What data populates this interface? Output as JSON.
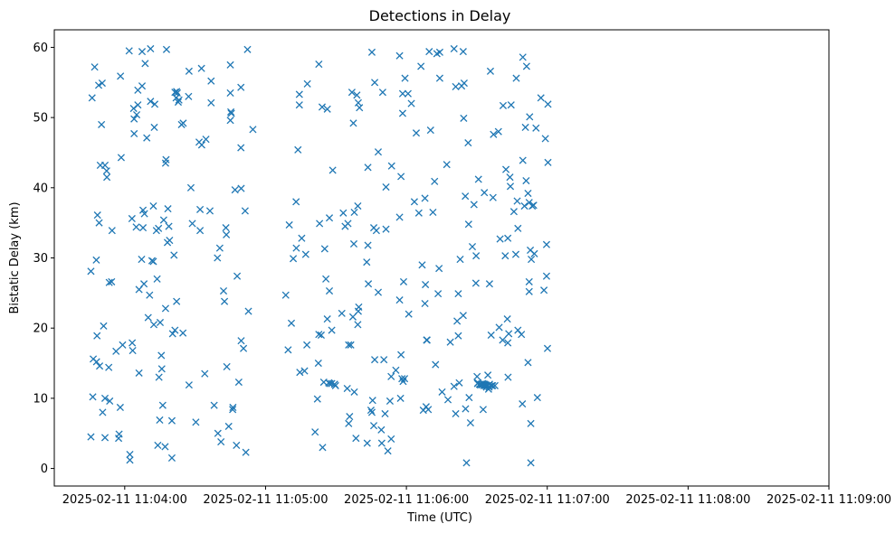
{
  "chart_data": {
    "type": "scatter",
    "title": "Detections in Delay",
    "xlabel": "Time (UTC)",
    "ylabel": "Bistatic Delay (km)",
    "marker": "x",
    "color": "#1f77b4",
    "x_unit": "seconds after 2025-02-11 11:03:30",
    "xlim": [
      0,
      330
    ],
    "ylim": [
      -2.5,
      62.5
    ],
    "x_ticks": [
      {
        "value": 30,
        "label": "2025-02-11 11:04:00"
      },
      {
        "value": 90,
        "label": "2025-02-11 11:05:00"
      },
      {
        "value": 150,
        "label": "2025-02-11 11:06:00"
      },
      {
        "value": 210,
        "label": "2025-02-11 11:07:00"
      },
      {
        "value": 270,
        "label": "2025-02-11 11:08:00"
      },
      {
        "value": 330,
        "label": "2025-02-11 11:09:00"
      }
    ],
    "y_ticks": [
      {
        "value": 0,
        "label": "0"
      },
      {
        "value": 10,
        "label": "10"
      },
      {
        "value": 20,
        "label": "20"
      },
      {
        "value": 30,
        "label": "30"
      },
      {
        "value": 40,
        "label": "40"
      },
      {
        "value": 50,
        "label": "50"
      },
      {
        "value": 60,
        "label": "60"
      }
    ],
    "points": [
      [
        15.6,
        4.5
      ],
      [
        16.1,
        52.8
      ],
      [
        15.6,
        28.1
      ],
      [
        16.4,
        10.2
      ],
      [
        16.6,
        15.6
      ],
      [
        17.2,
        57.2
      ],
      [
        17.9,
        29.7
      ],
      [
        18.0,
        15.2
      ],
      [
        18.4,
        36.1
      ],
      [
        18.2,
        18.9
      ],
      [
        18.9,
        54.6
      ],
      [
        19.1,
        35.0
      ],
      [
        19.3,
        14.6
      ],
      [
        19.6,
        43.2
      ],
      [
        20.1,
        49.0
      ],
      [
        20.4,
        54.9
      ],
      [
        20.6,
        8.0
      ],
      [
        21.0,
        20.3
      ],
      [
        21.6,
        10.0
      ],
      [
        21.6,
        4.4
      ],
      [
        21.6,
        43.2
      ],
      [
        22.3,
        42.4
      ],
      [
        22.4,
        41.5
      ],
      [
        23.4,
        26.5
      ],
      [
        23.2,
        14.4
      ],
      [
        23.6,
        9.6
      ],
      [
        24.4,
        26.6
      ],
      [
        24.6,
        33.9
      ],
      [
        26.3,
        16.7
      ],
      [
        27.4,
        4.3
      ],
      [
        27.6,
        4.9
      ],
      [
        28.1,
        8.7
      ],
      [
        28.2,
        55.9
      ],
      [
        28.5,
        44.3
      ],
      [
        29.1,
        17.6
      ],
      [
        31.9,
        59.5
      ],
      [
        32.2,
        1.2
      ],
      [
        32.2,
        2.0
      ],
      [
        33.1,
        35.6
      ],
      [
        33.2,
        17.9
      ],
      [
        33.4,
        16.8
      ],
      [
        33.8,
        51.3
      ],
      [
        34.0,
        49.8
      ],
      [
        34.0,
        47.7
      ],
      [
        34.9,
        34.4
      ],
      [
        35.1,
        50.4
      ],
      [
        35.6,
        51.8
      ],
      [
        35.6,
        53.9
      ],
      [
        36.1,
        13.6
      ],
      [
        36.1,
        25.5
      ],
      [
        37.2,
        29.8
      ],
      [
        37.4,
        54.5
      ],
      [
        37.4,
        59.4
      ],
      [
        37.8,
        36.8
      ],
      [
        37.8,
        34.3
      ],
      [
        38.2,
        26.3
      ],
      [
        38.4,
        36.3
      ],
      [
        38.7,
        57.7
      ],
      [
        39.4,
        47.1
      ],
      [
        40.0,
        21.5
      ],
      [
        40.6,
        24.7
      ],
      [
        41.0,
        59.8
      ],
      [
        41.0,
        52.3
      ],
      [
        41.6,
        29.6
      ],
      [
        42.2,
        29.5
      ],
      [
        42.2,
        37.4
      ],
      [
        42.4,
        20.5
      ],
      [
        42.6,
        48.6
      ],
      [
        42.8,
        51.9
      ],
      [
        43.5,
        33.9
      ],
      [
        43.8,
        27.0
      ],
      [
        44.1,
        3.3
      ],
      [
        44.4,
        34.2
      ],
      [
        44.6,
        13.0
      ],
      [
        44.9,
        6.9
      ],
      [
        45.1,
        20.8
      ],
      [
        45.6,
        16.1
      ],
      [
        45.8,
        14.2
      ],
      [
        46.2,
        9.0
      ],
      [
        46.6,
        35.4
      ],
      [
        47.2,
        3.1
      ],
      [
        47.4,
        43.5
      ],
      [
        47.4,
        22.8
      ],
      [
        47.6,
        44.0
      ],
      [
        47.8,
        59.7
      ],
      [
        48.2,
        32.2
      ],
      [
        48.4,
        37.0
      ],
      [
        48.8,
        34.5
      ],
      [
        49.1,
        32.5
      ],
      [
        50.1,
        6.8
      ],
      [
        50.1,
        1.5
      ],
      [
        50.4,
        19.2
      ],
      [
        51.0,
        30.4
      ],
      [
        51.4,
        19.7
      ],
      [
        51.4,
        53.6
      ],
      [
        51.9,
        52.8
      ],
      [
        52.1,
        53.7
      ],
      [
        52.1,
        23.8
      ],
      [
        52.4,
        53.5
      ],
      [
        52.8,
        52.2
      ],
      [
        53.1,
        52.5
      ],
      [
        54.2,
        49.0
      ],
      [
        54.8,
        19.3
      ],
      [
        54.9,
        49.2
      ],
      [
        57.2,
        53.0
      ],
      [
        57.4,
        11.9
      ],
      [
        57.4,
        56.6
      ],
      [
        58.2,
        40.0
      ],
      [
        58.8,
        34.9
      ],
      [
        60.3,
        6.6
      ],
      [
        61.7,
        46.5
      ],
      [
        62.1,
        33.9
      ],
      [
        62.1,
        36.9
      ],
      [
        62.7,
        57.0
      ],
      [
        62.8,
        46.1
      ],
      [
        64.1,
        13.5
      ],
      [
        64.6,
        46.9
      ],
      [
        66.3,
        36.7
      ],
      [
        66.8,
        55.2
      ],
      [
        66.8,
        52.1
      ],
      [
        68.1,
        9.0
      ],
      [
        69.5,
        30.0
      ],
      [
        69.7,
        5.0
      ],
      [
        70.5,
        31.4
      ],
      [
        71.0,
        3.8
      ],
      [
        72.1,
        25.3
      ],
      [
        72.5,
        23.8
      ],
      [
        73.1,
        34.3
      ],
      [
        73.3,
        33.3
      ],
      [
        73.5,
        14.5
      ],
      [
        74.3,
        6.0
      ],
      [
        75.0,
        57.5
      ],
      [
        75.0,
        53.5
      ],
      [
        75.0,
        49.6
      ],
      [
        75.2,
        50.8
      ],
      [
        75.4,
        50.6
      ],
      [
        76.0,
        8.4
      ],
      [
        76.1,
        8.7
      ],
      [
        77.0,
        39.7
      ],
      [
        77.6,
        3.3
      ],
      [
        77.9,
        27.4
      ],
      [
        78.6,
        12.3
      ],
      [
        79.5,
        45.7
      ],
      [
        79.5,
        54.3
      ],
      [
        79.6,
        18.2
      ],
      [
        79.6,
        39.9
      ],
      [
        80.6,
        17.1
      ],
      [
        81.3,
        36.7
      ],
      [
        81.6,
        2.3
      ],
      [
        82.3,
        59.7
      ],
      [
        82.7,
        22.4
      ],
      [
        84.6,
        48.3
      ],
      [
        98.6,
        24.7
      ],
      [
        99.6,
        16.9
      ],
      [
        100.1,
        34.7
      ],
      [
        101.0,
        20.7
      ],
      [
        101.8,
        29.9
      ],
      [
        103.0,
        38.0
      ],
      [
        103.1,
        31.4
      ],
      [
        103.8,
        45.4
      ],
      [
        104.4,
        51.8
      ],
      [
        104.4,
        53.3
      ],
      [
        104.6,
        13.7
      ],
      [
        105.4,
        32.8
      ],
      [
        106.6,
        13.9
      ],
      [
        107.1,
        30.5
      ],
      [
        107.6,
        17.6
      ],
      [
        107.8,
        54.8
      ],
      [
        111.1,
        5.2
      ],
      [
        112.1,
        9.9
      ],
      [
        112.5,
        15.0
      ],
      [
        112.7,
        19.1
      ],
      [
        112.7,
        57.6
      ],
      [
        113.0,
        34.9
      ],
      [
        113.7,
        19.0
      ],
      [
        114.1,
        51.5
      ],
      [
        114.3,
        3.0
      ],
      [
        114.8,
        12.3
      ],
      [
        115.2,
        31.3
      ],
      [
        115.7,
        27.0
      ],
      [
        116.3,
        51.2
      ],
      [
        116.3,
        21.3
      ],
      [
        116.9,
        12.2
      ],
      [
        117.2,
        35.7
      ],
      [
        117.2,
        25.3
      ],
      [
        117.4,
        12.1
      ],
      [
        118.2,
        19.7
      ],
      [
        118.2,
        12.1
      ],
      [
        118.6,
        42.5
      ],
      [
        119.4,
        12.0
      ],
      [
        119.8,
        11.8
      ],
      [
        122.5,
        22.1
      ],
      [
        123.1,
        36.4
      ],
      [
        123.9,
        34.5
      ],
      [
        124.8,
        11.4
      ],
      [
        125.1,
        34.9
      ],
      [
        125.4,
        17.6
      ],
      [
        125.4,
        6.4
      ],
      [
        125.8,
        7.4
      ],
      [
        126.3,
        17.6
      ],
      [
        126.8,
        53.6
      ],
      [
        127.2,
        21.6
      ],
      [
        127.4,
        49.2
      ],
      [
        127.6,
        32.0
      ],
      [
        127.8,
        10.9
      ],
      [
        127.8,
        36.5
      ],
      [
        128.5,
        4.3
      ],
      [
        128.9,
        53.2
      ],
      [
        129.5,
        22.4
      ],
      [
        129.3,
        20.5
      ],
      [
        129.3,
        37.4
      ],
      [
        129.7,
        23.0
      ],
      [
        129.5,
        52.1
      ],
      [
        130.0,
        51.4
      ],
      [
        133.1,
        29.4
      ],
      [
        133.3,
        3.6
      ],
      [
        133.6,
        31.8
      ],
      [
        133.6,
        42.9
      ],
      [
        133.8,
        26.3
      ],
      [
        134.9,
        8.3
      ],
      [
        135.3,
        8.0
      ],
      [
        135.3,
        59.3
      ],
      [
        135.6,
        9.7
      ],
      [
        136.1,
        6.1
      ],
      [
        136.1,
        34.3
      ],
      [
        136.5,
        55.0
      ],
      [
        136.5,
        15.5
      ],
      [
        137.2,
        33.9
      ],
      [
        138.0,
        25.1
      ],
      [
        138.0,
        45.1
      ],
      [
        139.3,
        5.5
      ],
      [
        139.5,
        3.6
      ],
      [
        139.9,
        53.6
      ],
      [
        140.4,
        15.5
      ],
      [
        140.9,
        7.8
      ],
      [
        141.3,
        40.1
      ],
      [
        141.3,
        34.1
      ],
      [
        142.1,
        2.5
      ],
      [
        143.0,
        9.6
      ],
      [
        143.5,
        13.1
      ],
      [
        143.5,
        4.2
      ],
      [
        143.7,
        43.1
      ],
      [
        145.5,
        14.0
      ],
      [
        147.1,
        24.0
      ],
      [
        147.1,
        35.8
      ],
      [
        147.1,
        58.8
      ],
      [
        147.7,
        41.6
      ],
      [
        147.5,
        10.0
      ],
      [
        147.7,
        16.2
      ],
      [
        148.1,
        12.8
      ],
      [
        148.4,
        53.4
      ],
      [
        148.4,
        50.6
      ],
      [
        148.6,
        12.4
      ],
      [
        148.8,
        26.6
      ],
      [
        149.2,
        12.8
      ],
      [
        149.4,
        55.6
      ],
      [
        150.7,
        53.4
      ],
      [
        151.0,
        22.0
      ],
      [
        152.1,
        52.0
      ],
      [
        153.4,
        38.0
      ],
      [
        154.2,
        47.8
      ],
      [
        155.3,
        36.4
      ],
      [
        156.2,
        57.3
      ],
      [
        156.7,
        29.0
      ],
      [
        157.2,
        8.3
      ],
      [
        157.9,
        23.5
      ],
      [
        157.9,
        38.5
      ],
      [
        158.4,
        8.8
      ],
      [
        158.1,
        26.2
      ],
      [
        158.6,
        18.3
      ],
      [
        158.8,
        18.3
      ],
      [
        159.3,
        8.4
      ],
      [
        159.7,
        59.4
      ],
      [
        160.3,
        48.2
      ],
      [
        161.3,
        36.5
      ],
      [
        162.0,
        40.9
      ],
      [
        162.4,
        14.8
      ],
      [
        163.0,
        59.1
      ],
      [
        163.5,
        24.9
      ],
      [
        163.9,
        28.5
      ],
      [
        164.2,
        59.3
      ],
      [
        164.2,
        55.6
      ],
      [
        165.2,
        10.9
      ],
      [
        167.2,
        43.3
      ],
      [
        167.7,
        9.8
      ],
      [
        168.7,
        18.0
      ],
      [
        170.3,
        59.8
      ],
      [
        170.3,
        11.7
      ],
      [
        171.0,
        54.4
      ],
      [
        171.0,
        7.8
      ],
      [
        171.6,
        21.0
      ],
      [
        172.1,
        18.9
      ],
      [
        172.1,
        24.9
      ],
      [
        172.5,
        12.2
      ],
      [
        172.9,
        29.8
      ],
      [
        173.5,
        54.5
      ],
      [
        174.2,
        21.8
      ],
      [
        174.2,
        59.4
      ],
      [
        174.4,
        49.9
      ],
      [
        174.6,
        54.9
      ],
      [
        175.2,
        8.5
      ],
      [
        175.1,
        38.8
      ],
      [
        175.6,
        0.8
      ],
      [
        176.3,
        46.4
      ],
      [
        176.5,
        34.8
      ],
      [
        176.7,
        10.1
      ],
      [
        177.3,
        6.5
      ],
      [
        178.1,
        31.6
      ],
      [
        178.8,
        37.6
      ],
      [
        179.6,
        26.4
      ],
      [
        179.7,
        30.3
      ],
      [
        180.1,
        13.1
      ],
      [
        180.3,
        12.1
      ],
      [
        180.5,
        12.2
      ],
      [
        180.7,
        41.2
      ],
      [
        181.1,
        12.0
      ],
      [
        181.5,
        11.9
      ],
      [
        181.8,
        12.0
      ],
      [
        182.2,
        11.9
      ],
      [
        182.4,
        12.1
      ],
      [
        182.7,
        8.4
      ],
      [
        182.8,
        12.0
      ],
      [
        183.0,
        11.8
      ],
      [
        183.2,
        39.3
      ],
      [
        183.4,
        12.0
      ],
      [
        183.7,
        11.8
      ],
      [
        183.9,
        11.9
      ],
      [
        184.1,
        11.6
      ],
      [
        184.3,
        11.8
      ],
      [
        184.7,
        13.3
      ],
      [
        184.8,
        11.8
      ],
      [
        185.0,
        11.3
      ],
      [
        185.2,
        11.6
      ],
      [
        185.4,
        12.0
      ],
      [
        185.8,
        56.6
      ],
      [
        185.4,
        26.3
      ],
      [
        186.1,
        19.0
      ],
      [
        186.3,
        11.8
      ],
      [
        186.7,
        11.8
      ],
      [
        186.9,
        38.6
      ],
      [
        187.1,
        47.6
      ],
      [
        187.7,
        11.8
      ],
      [
        189.2,
        48.0
      ],
      [
        189.5,
        20.1
      ],
      [
        189.9,
        32.7
      ],
      [
        191.0,
        18.3
      ],
      [
        191.2,
        51.7
      ],
      [
        192.1,
        30.3
      ],
      [
        192.4,
        42.6
      ],
      [
        193.0,
        21.3
      ],
      [
        193.2,
        32.8
      ],
      [
        193.2,
        17.9
      ],
      [
        193.3,
        13.0
      ],
      [
        193.6,
        19.2
      ],
      [
        194.1,
        41.5
      ],
      [
        194.3,
        40.2
      ],
      [
        194.6,
        51.8
      ],
      [
        195.8,
        36.6
      ],
      [
        196.6,
        30.5
      ],
      [
        196.8,
        55.6
      ],
      [
        197.2,
        38.1
      ],
      [
        197.5,
        19.7
      ],
      [
        197.5,
        34.2
      ],
      [
        199.0,
        19.1
      ],
      [
        199.4,
        9.2
      ],
      [
        199.6,
        43.9
      ],
      [
        199.6,
        58.6
      ],
      [
        200.3,
        37.4
      ],
      [
        200.7,
        48.6
      ],
      [
        201.0,
        41.0
      ],
      [
        201.2,
        57.3
      ],
      [
        201.8,
        15.1
      ],
      [
        201.8,
        39.2
      ],
      [
        202.3,
        25.2
      ],
      [
        202.3,
        37.9
      ],
      [
        202.3,
        26.6
      ],
      [
        202.5,
        50.1
      ],
      [
        202.8,
        31.1
      ],
      [
        203.0,
        0.8
      ],
      [
        203.0,
        6.4
      ],
      [
        203.2,
        29.8
      ],
      [
        203.6,
        37.4
      ],
      [
        204.2,
        37.5
      ],
      [
        204.5,
        30.6
      ],
      [
        205.2,
        48.5
      ],
      [
        205.8,
        10.1
      ],
      [
        207.3,
        52.8
      ],
      [
        208.6,
        25.4
      ],
      [
        209.2,
        47.0
      ],
      [
        209.7,
        31.9
      ],
      [
        209.7,
        27.4
      ],
      [
        210.1,
        17.1
      ],
      [
        210.3,
        51.9
      ],
      [
        210.3,
        43.6
      ]
    ]
  }
}
